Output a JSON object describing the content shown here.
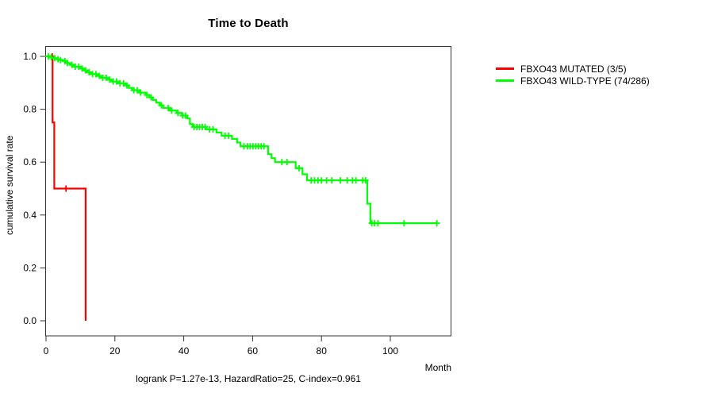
{
  "title": "Time to Death",
  "x_axis_label": "Month",
  "y_axis_label": "cumulative survival rate",
  "footer": "logrank P=1.27e-13, HazardRatio=25, C-index=0.961",
  "legend": {
    "items": [
      {
        "label": "FBXO43 MUTATED (3/5)",
        "color": "#ff0000"
      },
      {
        "label": "FBXO43 WILD-TYPE (74/286)",
        "color": "#00ff00"
      }
    ]
  },
  "chart_data": {
    "type": "line",
    "subtype": "kaplan-meier-step-survival",
    "title": "Time to Death",
    "xlabel": "Month",
    "ylabel": "cumulative survival rate",
    "xlim": [
      0,
      118
    ],
    "ylim": [
      0.0,
      1.0
    ],
    "x_tick_values": [
      0,
      20,
      40,
      60,
      80,
      100
    ],
    "x_tick_labels": [
      "0",
      "20",
      "40",
      "60",
      "80",
      "100"
    ],
    "y_tick_values": [
      0.0,
      0.2,
      0.4,
      0.6,
      0.8,
      1.0
    ],
    "y_tick_labels": [
      "0.0",
      "0.2",
      "0.4",
      "0.6",
      "0.8",
      "1.0"
    ],
    "grid": false,
    "legend_position": "right-outside",
    "annotation": "logrank P=1.27e-13, HazardRatio=25, C-index=0.961",
    "series": [
      {
        "name": "FBXO43 MUTATED (3/5)",
        "color": "#ff0000",
        "end_month": 11.5,
        "points": [
          [
            0,
            1.0
          ],
          [
            1.9,
            0.75
          ],
          [
            2.4,
            0.5
          ],
          [
            11.5,
            0.0
          ]
        ],
        "censor_months": [
          1.8,
          5.8
        ]
      },
      {
        "name": "FBXO43 WILD-TYPE (74/286)",
        "color": "#00ff00",
        "end_month": 113.5,
        "points": [
          [
            0,
            1.0
          ],
          [
            1,
            0.996
          ],
          [
            2,
            0.993
          ],
          [
            3,
            0.989
          ],
          [
            4,
            0.986
          ],
          [
            5,
            0.982
          ],
          [
            6,
            0.975
          ],
          [
            7,
            0.968
          ],
          [
            8,
            0.961
          ],
          [
            10,
            0.954
          ],
          [
            11,
            0.947
          ],
          [
            12,
            0.94
          ],
          [
            13,
            0.933
          ],
          [
            15,
            0.926
          ],
          [
            16,
            0.919
          ],
          [
            18,
            0.912
          ],
          [
            19,
            0.905
          ],
          [
            21,
            0.898
          ],
          [
            23,
            0.89
          ],
          [
            24,
            0.881
          ],
          [
            25,
            0.872
          ],
          [
            27,
            0.863
          ],
          [
            29,
            0.854
          ],
          [
            30,
            0.845
          ],
          [
            31,
            0.835
          ],
          [
            32,
            0.825
          ],
          [
            33,
            0.815
          ],
          [
            34,
            0.805
          ],
          [
            36,
            0.795
          ],
          [
            38,
            0.786
          ],
          [
            39.5,
            0.776
          ],
          [
            41,
            0.765
          ],
          [
            41.8,
            0.744
          ],
          [
            42.6,
            0.733
          ],
          [
            46.5,
            0.724
          ],
          [
            49.5,
            0.712
          ],
          [
            51,
            0.7
          ],
          [
            54,
            0.688
          ],
          [
            55.5,
            0.674
          ],
          [
            56.5,
            0.66
          ],
          [
            64.5,
            0.63
          ],
          [
            65.5,
            0.615
          ],
          [
            66.5,
            0.6
          ],
          [
            72.5,
            0.577
          ],
          [
            74.5,
            0.554
          ],
          [
            75.8,
            0.531
          ],
          [
            93.3,
            0.443
          ],
          [
            94.2,
            0.369
          ]
        ],
        "censor_months": [
          0.7,
          1.5,
          2.5,
          3.5,
          4.2,
          5.5,
          6.2,
          7.5,
          8.5,
          9.5,
          10.5,
          11.5,
          12.5,
          13.5,
          14.5,
          15.5,
          16.5,
          17.5,
          18.5,
          19.5,
          20.5,
          21.5,
          22.5,
          23.5,
          25.5,
          26.5,
          27.5,
          29.3,
          30.5,
          33.5,
          35.5,
          36.5,
          38.3,
          39.7,
          40.5,
          43,
          43.8,
          44.6,
          45.4,
          46.2,
          47.5,
          48.5,
          52,
          53,
          57.5,
          58.5,
          59.3,
          60.1,
          60.9,
          61.7,
          62.5,
          63.3,
          68.5,
          70,
          73.5,
          77,
          78,
          79,
          80,
          81.5,
          83,
          85.5,
          87.5,
          89,
          90,
          92,
          92.8,
          94.6,
          95.4,
          96.4,
          104,
          113.5
        ]
      }
    ]
  }
}
